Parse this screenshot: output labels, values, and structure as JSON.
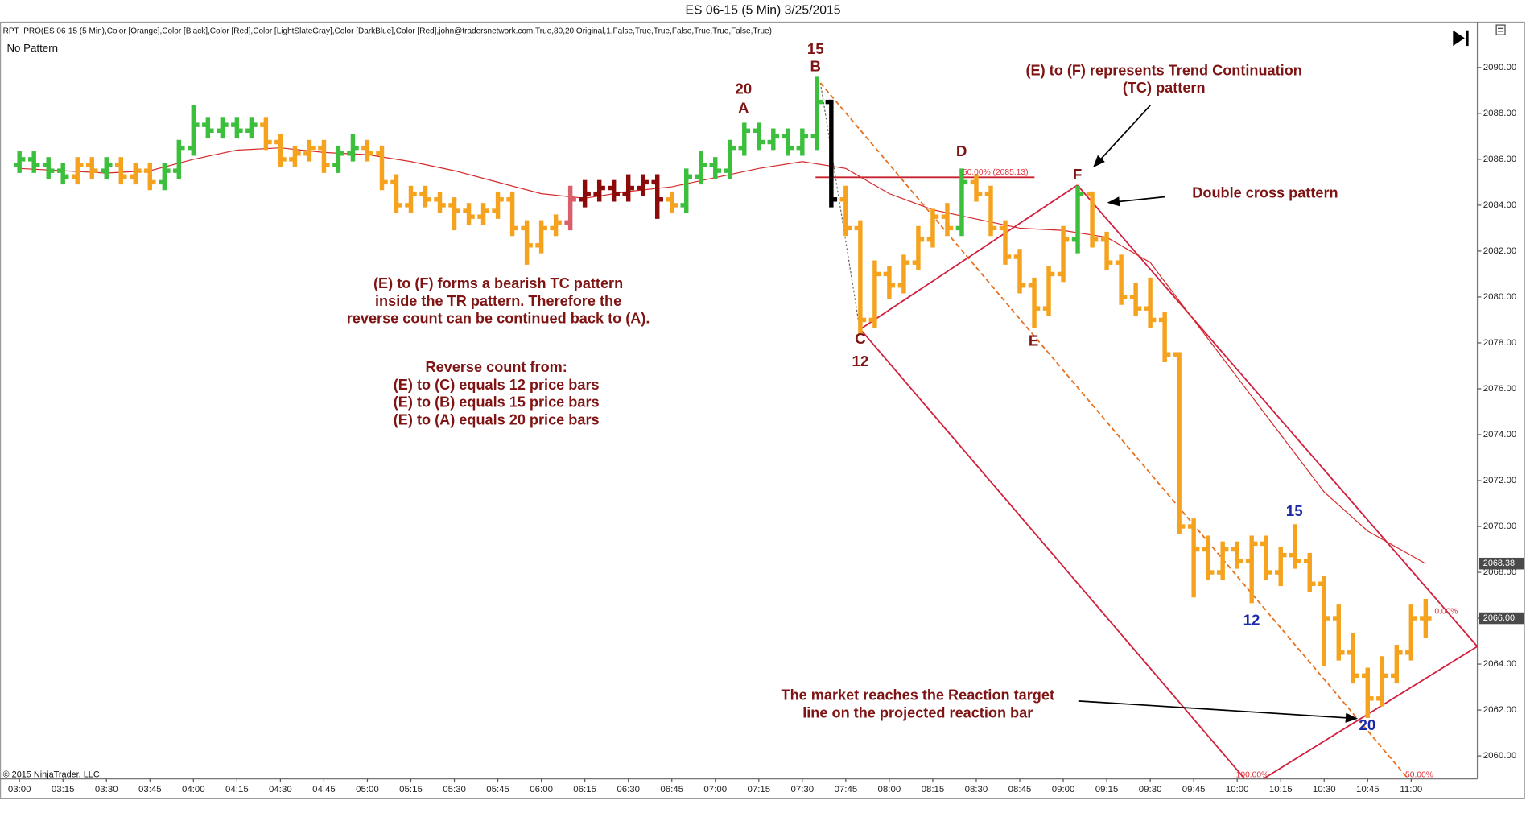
{
  "chart_data": {
    "type": "ohlc",
    "title": "ES 06-15 (5 Min)  3/25/2015",
    "indicator": "RPT_PRO(ES 06-15 (5 Min),Color [Orange],Color [Black],Color [Red],Color [LightSlateGray],Color [DarkBlue],Color [Red],john@tradersnetwork.com,True,80,20,Original,1,False,True,True,False,True,True,False,True)",
    "status": "No Pattern",
    "copyright": "© 2015 NinjaTrader, LLC",
    "categories": [
      "03:00",
      "03:05",
      "03:10",
      "03:15",
      "03:20",
      "03:25",
      "03:30",
      "03:35",
      "03:40",
      "03:45",
      "03:50",
      "03:55",
      "04:00",
      "04:05",
      "04:10",
      "04:15",
      "04:20",
      "04:25",
      "04:30",
      "04:35",
      "04:40",
      "04:45",
      "04:50",
      "04:55",
      "05:00",
      "05:05",
      "05:10",
      "05:15",
      "05:20",
      "05:25",
      "05:30",
      "05:35",
      "05:40",
      "05:45",
      "05:50",
      "05:55",
      "06:00",
      "06:05",
      "06:10",
      "06:15",
      "06:20",
      "06:25",
      "06:30",
      "06:35",
      "06:40",
      "06:45",
      "06:50",
      "06:55",
      "07:00",
      "07:05",
      "07:10",
      "07:15",
      "07:20",
      "07:25",
      "07:30",
      "07:35",
      "07:40",
      "07:45",
      "07:50",
      "07:55",
      "08:00",
      "08:05",
      "08:10",
      "08:15",
      "08:20",
      "08:25",
      "08:30",
      "08:35",
      "08:40",
      "08:45",
      "08:50",
      "08:55",
      "09:00",
      "09:05",
      "09:10",
      "09:15",
      "09:20",
      "09:25",
      "09:30",
      "09:35",
      "09:40",
      "09:45",
      "09:50",
      "09:55",
      "10:00",
      "10:05",
      "10:10",
      "10:15",
      "10:20",
      "10:25",
      "10:30",
      "10:35",
      "10:40",
      "10:45",
      "10:50",
      "10:55",
      "11:00",
      "11:05"
    ],
    "bars": [
      [
        2085.75,
        2086.25,
        2085.5,
        2086.0
      ],
      [
        2086.0,
        2086.25,
        2085.5,
        2085.75
      ],
      [
        2085.75,
        2086.0,
        2085.25,
        2085.5
      ],
      [
        2085.5,
        2085.75,
        2085.0,
        2085.25
      ],
      [
        2085.25,
        2086.0,
        2085.0,
        2085.75
      ],
      [
        2085.75,
        2086.0,
        2085.25,
        2085.5
      ],
      [
        2085.5,
        2086.0,
        2085.25,
        2085.75
      ],
      [
        2085.75,
        2086.0,
        2085.0,
        2085.25
      ],
      [
        2085.25,
        2085.75,
        2085.0,
        2085.5
      ],
      [
        2085.5,
        2085.75,
        2084.75,
        2085.0
      ],
      [
        2085.0,
        2085.75,
        2084.75,
        2085.5
      ],
      [
        2085.5,
        2086.75,
        2085.25,
        2086.5
      ],
      [
        2086.5,
        2088.25,
        2086.25,
        2087.5
      ],
      [
        2087.5,
        2087.75,
        2087.0,
        2087.25
      ],
      [
        2087.25,
        2087.75,
        2087.0,
        2087.5
      ],
      [
        2087.5,
        2087.75,
        2087.0,
        2087.25
      ],
      [
        2087.25,
        2087.75,
        2087.0,
        2087.5
      ],
      [
        2087.5,
        2087.75,
        2086.5,
        2086.75
      ],
      [
        2086.75,
        2087.0,
        2085.75,
        2086.0
      ],
      [
        2086.0,
        2086.5,
        2085.75,
        2086.25
      ],
      [
        2086.25,
        2086.75,
        2086.0,
        2086.5
      ],
      [
        2086.5,
        2086.75,
        2085.5,
        2085.75
      ],
      [
        2085.75,
        2086.5,
        2085.5,
        2086.25
      ],
      [
        2086.25,
        2087.0,
        2086.0,
        2086.5
      ],
      [
        2086.5,
        2086.75,
        2086.0,
        2086.25
      ],
      [
        2086.25,
        2086.5,
        2084.75,
        2085.0
      ],
      [
        2085.0,
        2085.25,
        2083.75,
        2084.0
      ],
      [
        2084.0,
        2084.75,
        2083.75,
        2084.5
      ],
      [
        2084.5,
        2084.75,
        2084.0,
        2084.25
      ],
      [
        2084.25,
        2084.5,
        2083.75,
        2084.0
      ],
      [
        2084.0,
        2084.25,
        2083.0,
        2083.75
      ],
      [
        2083.75,
        2084.0,
        2083.25,
        2083.5
      ],
      [
        2083.5,
        2084.0,
        2083.25,
        2083.75
      ],
      [
        2083.75,
        2084.5,
        2083.5,
        2084.25
      ],
      [
        2084.25,
        2084.5,
        2082.75,
        2083.0
      ],
      [
        2083.0,
        2083.25,
        2081.5,
        2082.25
      ],
      [
        2082.25,
        2083.25,
        2082.0,
        2083.0
      ],
      [
        2083.0,
        2083.5,
        2082.75,
        2083.25
      ],
      [
        2083.25,
        2084.75,
        2083.0,
        2084.25
      ],
      [
        2084.25,
        2085.0,
        2084.0,
        2084.5
      ],
      [
        2084.5,
        2085.0,
        2084.25,
        2084.75
      ],
      [
        2084.75,
        2085.0,
        2084.25,
        2084.5
      ],
      [
        2084.5,
        2085.25,
        2084.25,
        2084.75
      ],
      [
        2084.75,
        2085.25,
        2084.5,
        2085.0
      ],
      [
        2085.0,
        2085.25,
        2083.5,
        2084.25
      ],
      [
        2084.25,
        2084.5,
        2083.75,
        2084.0
      ],
      [
        2084.0,
        2085.5,
        2083.75,
        2085.25
      ],
      [
        2085.25,
        2086.25,
        2085.0,
        2085.75
      ],
      [
        2085.75,
        2086.0,
        2085.25,
        2085.5
      ],
      [
        2085.5,
        2086.75,
        2085.25,
        2086.5
      ],
      [
        2086.5,
        2087.5,
        2086.25,
        2087.25
      ],
      [
        2087.25,
        2087.5,
        2086.5,
        2086.75
      ],
      [
        2086.75,
        2087.25,
        2086.5,
        2087.0
      ],
      [
        2087.0,
        2087.25,
        2086.25,
        2086.5
      ],
      [
        2086.5,
        2087.25,
        2086.25,
        2087.0
      ],
      [
        2087.0,
        2089.5,
        2086.5,
        2088.5
      ],
      [
        2088.5,
        2088.5,
        2084.0,
        2084.25
      ],
      [
        2084.25,
        2084.75,
        2082.75,
        2083.0
      ],
      [
        2083.0,
        2083.25,
        2078.5,
        2079.0
      ],
      [
        2079.0,
        2081.5,
        2078.75,
        2081.0
      ],
      [
        2081.0,
        2081.25,
        2080.0,
        2080.5
      ],
      [
        2080.5,
        2081.75,
        2080.25,
        2081.5
      ],
      [
        2081.5,
        2083.0,
        2081.25,
        2082.5
      ],
      [
        2082.5,
        2083.75,
        2082.25,
        2083.5
      ],
      [
        2083.5,
        2084.0,
        2082.75,
        2083.0
      ],
      [
        2083.0,
        2085.5,
        2082.75,
        2085.0
      ],
      [
        2085.0,
        2085.25,
        2084.25,
        2084.5
      ],
      [
        2084.5,
        2084.75,
        2082.75,
        2083.0
      ],
      [
        2083.0,
        2083.25,
        2081.5,
        2081.75
      ],
      [
        2081.75,
        2082.0,
        2080.25,
        2080.5
      ],
      [
        2080.5,
        2080.75,
        2078.75,
        2079.5
      ],
      [
        2079.5,
        2081.25,
        2079.25,
        2081.0
      ],
      [
        2081.0,
        2083.0,
        2080.75,
        2082.5
      ],
      [
        2082.5,
        2084.75,
        2082.0,
        2084.5
      ],
      [
        2084.5,
        2084.5,
        2082.25,
        2082.5
      ],
      [
        2082.5,
        2082.75,
        2081.25,
        2081.5
      ],
      [
        2081.5,
        2081.75,
        2079.75,
        2080.0
      ],
      [
        2080.0,
        2080.5,
        2079.25,
        2079.5
      ],
      [
        2079.5,
        2080.75,
        2078.75,
        2079.0
      ],
      [
        2079.0,
        2079.25,
        2077.25,
        2077.5
      ],
      [
        2077.5,
        2077.5,
        2069.75,
        2070.0
      ],
      [
        2070.0,
        2070.25,
        2067.0,
        2069.0
      ],
      [
        2069.0,
        2069.5,
        2067.75,
        2068.0
      ],
      [
        2068.0,
        2069.25,
        2067.75,
        2069.0
      ],
      [
        2069.0,
        2069.25,
        2068.25,
        2068.5
      ],
      [
        2068.5,
        2069.5,
        2066.75,
        2069.25
      ],
      [
        2069.25,
        2069.5,
        2067.75,
        2068.0
      ],
      [
        2068.0,
        2069.0,
        2067.5,
        2068.75
      ],
      [
        2068.75,
        2070.0,
        2068.25,
        2068.5
      ],
      [
        2068.5,
        2068.75,
        2067.25,
        2067.5
      ],
      [
        2067.5,
        2067.75,
        2064.0,
        2066.0
      ],
      [
        2066.0,
        2066.5,
        2064.25,
        2064.5
      ],
      [
        2064.5,
        2065.25,
        2063.25,
        2063.5
      ],
      [
        2063.5,
        2063.75,
        2061.75,
        2062.5
      ],
      [
        2062.5,
        2064.25,
        2062.25,
        2063.5
      ],
      [
        2063.5,
        2064.75,
        2063.25,
        2064.5
      ],
      [
        2064.5,
        2066.5,
        2064.25,
        2066.0
      ],
      [
        2066.0,
        2066.75,
        2065.25,
        2066.0
      ]
    ],
    "colors": [
      "#3cbf3c",
      "#3cbf3c",
      "#3cbf3c",
      "#3cbf3c",
      "#f5a31e",
      "#f5a31e",
      "#3cbf3c",
      "#f5a31e",
      "#f5a31e",
      "#f5a31e",
      "#3cbf3c",
      "#3cbf3c",
      "#3cbf3c",
      "#3cbf3c",
      "#3cbf3c",
      "#3cbf3c",
      "#3cbf3c",
      "#f5a31e",
      "#f5a31e",
      "#f5a31e",
      "#f5a31e",
      "#f5a31e",
      "#3cbf3c",
      "#3cbf3c",
      "#f5a31e",
      "#f5a31e",
      "#f5a31e",
      "#f5a31e",
      "#f5a31e",
      "#f5a31e",
      "#f5a31e",
      "#f5a31e",
      "#f5a31e",
      "#f5a31e",
      "#f5a31e",
      "#f5a31e",
      "#f5a31e",
      "#f5a31e",
      "#d9606a",
      "#8b0a0a",
      "#8b0a0a",
      "#8b0a0a",
      "#8b0a0a",
      "#8b0a0a",
      "#8b0a0a",
      "#f5a31e",
      "#3cbf3c",
      "#3cbf3c",
      "#3cbf3c",
      "#3cbf3c",
      "#3cbf3c",
      "#3cbf3c",
      "#3cbf3c",
      "#3cbf3c",
      "#3cbf3c",
      "#3cbf3c",
      "#000000",
      "#f5a31e",
      "#f5a31e",
      "#f5a31e",
      "#f5a31e",
      "#f5a31e",
      "#f5a31e",
      "#f5a31e",
      "#f5a31e",
      "#3cbf3c",
      "#f5a31e",
      "#f5a31e",
      "#f5a31e",
      "#f5a31e",
      "#f5a31e",
      "#f5a31e",
      "#f5a31e",
      "#3cbf3c",
      "#f5a31e",
      "#f5a31e",
      "#f5a31e",
      "#f5a31e",
      "#f5a31e",
      "#f5a31e",
      "#f5a31e",
      "#f5a31e",
      "#f5a31e",
      "#f5a31e",
      "#f5a31e",
      "#f5a31e",
      "#f5a31e",
      "#f5a31e",
      "#f5a31e",
      "#f5a31e",
      "#f5a31e",
      "#f5a31e",
      "#f5a31e",
      "#f5a31e",
      "#f5a31e",
      "#f5a31e",
      "#f5a31e",
      "#f5a31e"
    ],
    "ma": {
      "color": "#d42a2a",
      "x": [
        "03:00",
        "03:15",
        "03:30",
        "03:45",
        "04:00",
        "04:15",
        "04:30",
        "04:45",
        "05:00",
        "05:15",
        "05:30",
        "05:45",
        "06:00",
        "06:15",
        "06:30",
        "06:45",
        "07:00",
        "07:15",
        "07:30",
        "07:45",
        "08:00",
        "08:15",
        "08:30",
        "08:45",
        "09:00",
        "09:15",
        "09:30",
        "09:45",
        "10:00",
        "10:15",
        "10:30",
        "10:45",
        "11:05"
      ],
      "values": [
        2085.6,
        2085.5,
        2085.4,
        2085.5,
        2086.0,
        2086.4,
        2086.5,
        2086.3,
        2086.2,
        2085.9,
        2085.5,
        2085.0,
        2084.5,
        2084.3,
        2084.6,
        2084.8,
        2085.2,
        2085.6,
        2085.9,
        2085.6,
        2084.5,
        2083.8,
        2083.4,
        2083.0,
        2082.9,
        2082.6,
        2081.5,
        2079.0,
        2076.5,
        2074.0,
        2071.5,
        2069.8,
        2068.38
      ]
    },
    "ylim": [
      2059,
      2092
    ],
    "yticks": [
      {
        "value": 2060,
        "label": "2060.00"
      },
      {
        "value": 2062,
        "label": "2062.00"
      },
      {
        "value": 2064,
        "label": "2064.00"
      },
      {
        "value": 2066,
        "label": "2066.00"
      },
      {
        "value": 2068,
        "label": "2068.00"
      },
      {
        "value": 2070,
        "label": "2070.00"
      },
      {
        "value": 2072,
        "label": "2072.00"
      },
      {
        "value": 2074,
        "label": "2074.00"
      },
      {
        "value": 2076,
        "label": "2076.00"
      },
      {
        "value": 2078,
        "label": "2078.00"
      },
      {
        "value": 2080,
        "label": "2080.00"
      },
      {
        "value": 2082,
        "label": "2082.00"
      },
      {
        "value": 2084,
        "label": "2084.00"
      },
      {
        "value": 2086,
        "label": "2086.00"
      },
      {
        "value": 2088,
        "label": "2088.00"
      },
      {
        "value": 2090,
        "label": "2090.00"
      }
    ],
    "xticks": [
      "03:00",
      "03:15",
      "03:30",
      "03:45",
      "04:00",
      "04:15",
      "04:30",
      "04:45",
      "05:00",
      "05:15",
      "05:30",
      "05:45",
      "06:00",
      "06:15",
      "06:30",
      "06:45",
      "07:00",
      "07:15",
      "07:30",
      "07:45",
      "08:00",
      "08:15",
      "08:30",
      "08:45",
      "09:00",
      "09:15",
      "09:30",
      "09:45",
      "10:00",
      "10:15",
      "10:30",
      "10:45",
      "11:00"
    ],
    "price_markers": [
      {
        "value": 2068.38,
        "label": "2068.38"
      },
      {
        "value": 2066,
        "label": "2066.00"
      }
    ],
    "grid": false,
    "annotations": {
      "tc_title": [
        "(E) to (F) represents Trend Continuation",
        "(TC) pattern"
      ],
      "double_cross": "Double cross pattern",
      "bearish": [
        "(E) to (F) forms a bearish TC pattern",
        "inside the TR pattern. Therefore the",
        "reverse count can be continued back to (A)."
      ],
      "reverse": [
        "Reverse count from:",
        "(E) to (C) equals 12 price bars",
        "(E) to (B) equals 15 price bars",
        "(E) to (A) equals 20 price bars"
      ],
      "reaction": [
        "The market reaches the Reaction target",
        "line on the projected reaction bar"
      ],
      "points": [
        "20",
        "A",
        "15",
        "B",
        "C",
        "12",
        "D",
        "E",
        "F"
      ],
      "counts": [
        "15",
        "12",
        "20"
      ],
      "fib": [
        "50.00% (2085.13)",
        "100.00%",
        "50.00%",
        "0.00%"
      ]
    }
  }
}
